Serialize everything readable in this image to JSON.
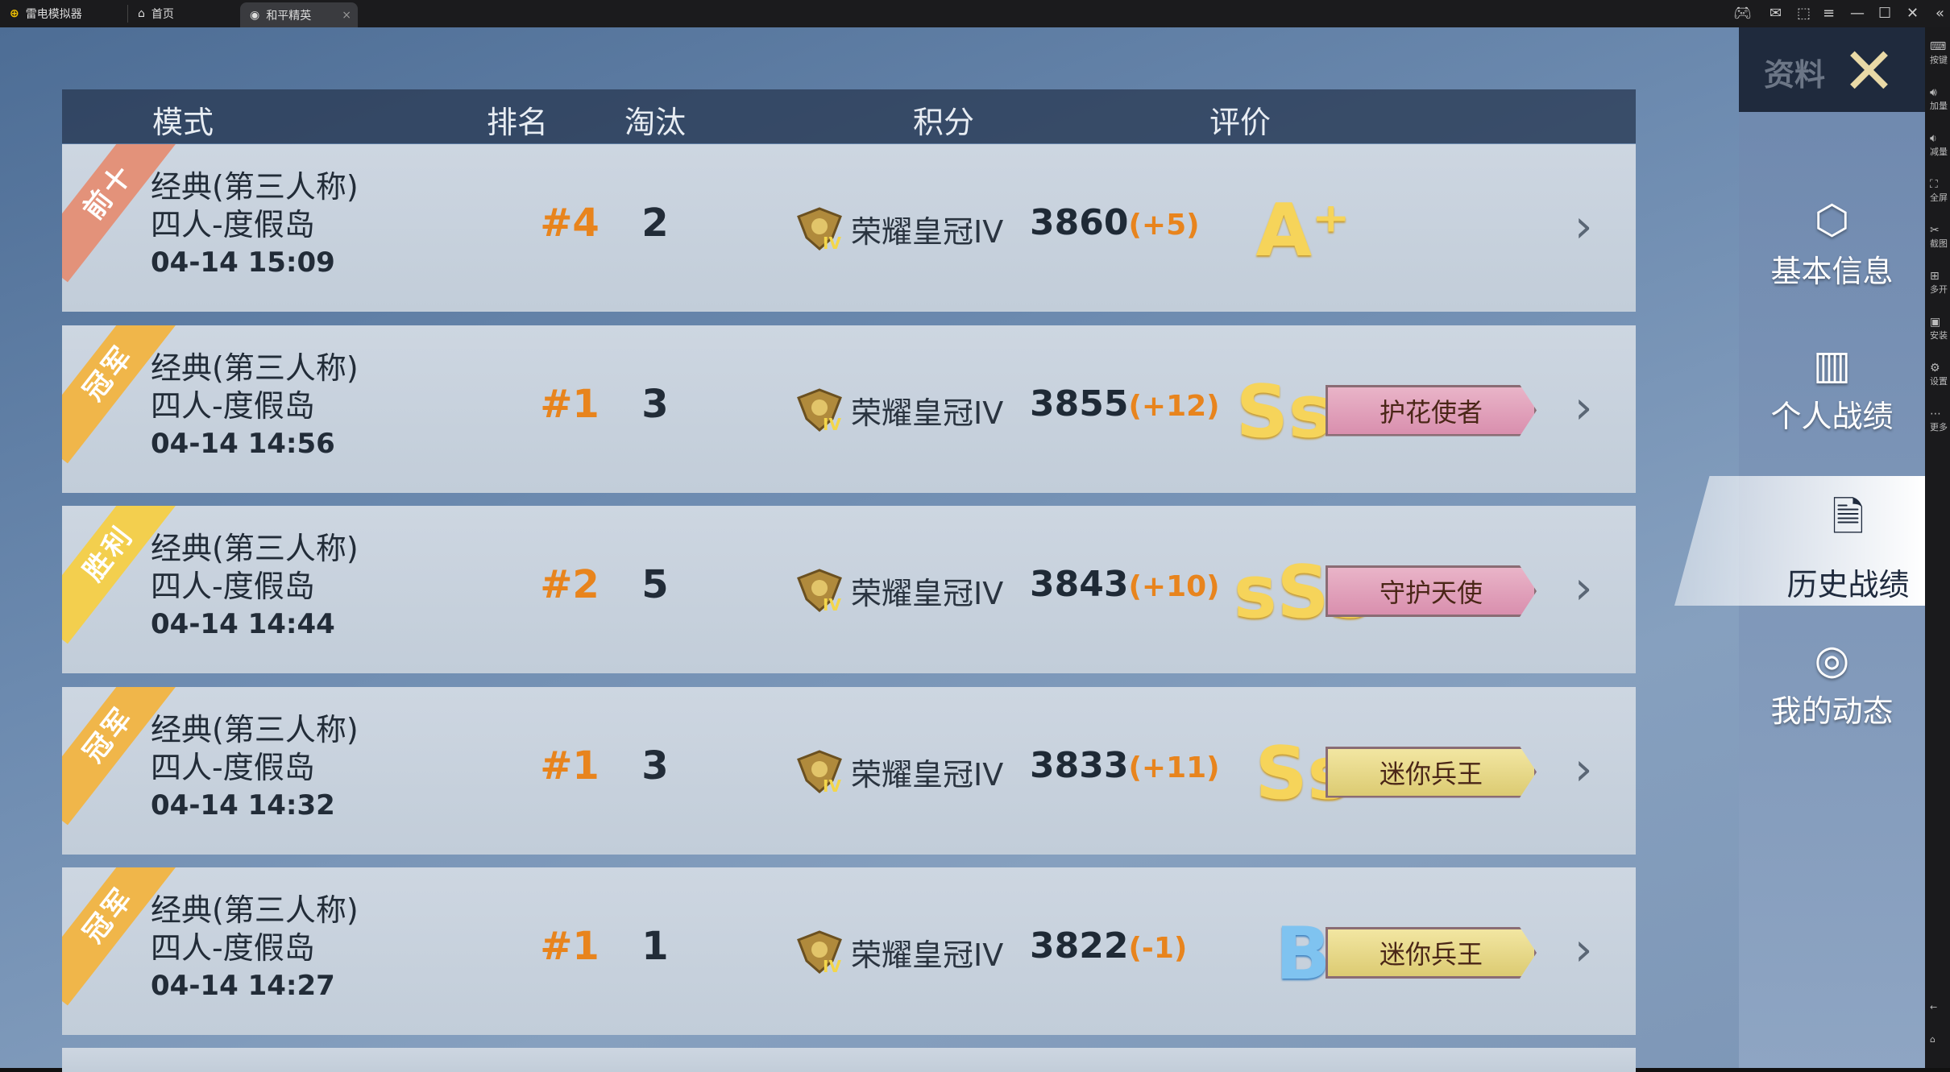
{
  "titlebar": {
    "app": "雷电模拟器",
    "tabs": [
      {
        "label": "首页"
      },
      {
        "label": "和平精英"
      }
    ]
  },
  "tools": [
    {
      "icon": "keyboard-icon",
      "label": "按键"
    },
    {
      "icon": "volume-up-icon",
      "label": "加量"
    },
    {
      "icon": "volume-down-icon",
      "label": "减量"
    },
    {
      "icon": "fullscreen-icon",
      "label": "全屏"
    },
    {
      "icon": "scissors-icon",
      "label": "截图"
    },
    {
      "icon": "multi-instance-icon",
      "label": "多开"
    },
    {
      "icon": "apk-icon",
      "label": "安装"
    },
    {
      "icon": "gear-icon",
      "label": "设置"
    },
    {
      "icon": "more-icon",
      "label": "更多"
    }
  ],
  "header": {
    "mode": "模式",
    "rank": "排名",
    "kills": "淘汰",
    "score": "积分",
    "rating": "评价"
  },
  "rows": [
    {
      "ribbon": "前十",
      "ribbon_color": "#e3927a",
      "mode": "经典(第三人称)",
      "map": "四人-度假岛",
      "time": "04-14 15:09",
      "rank": "#4",
      "kills": "2",
      "tier": "荣耀皇冠IV",
      "score": "3860",
      "delta": "(+5)",
      "grade": "A⁺",
      "title": ""
    },
    {
      "ribbon": "冠军",
      "ribbon_color": "#f0b64a",
      "mode": "经典(第三人称)",
      "map": "四人-度假岛",
      "time": "04-14 14:56",
      "rank": "#1",
      "kills": "3",
      "tier": "荣耀皇冠IV",
      "score": "3855",
      "delta": "(+12)",
      "grade": "Ss⁺",
      "title": "护花使者",
      "title_style": "pink"
    },
    {
      "ribbon": "胜利",
      "ribbon_color": "#f3cf4e",
      "mode": "经典(第三人称)",
      "map": "四人-度假岛",
      "time": "04-14 14:44",
      "rank": "#2",
      "kills": "5",
      "tier": "荣耀皇冠IV",
      "score": "3843",
      "delta": "(+10)",
      "grade": "sSs",
      "title": "守护天使",
      "title_style": "pink"
    },
    {
      "ribbon": "冠军",
      "ribbon_color": "#f0b64a",
      "mode": "经典(第三人称)",
      "map": "四人-度假岛",
      "time": "04-14 14:32",
      "rank": "#1",
      "kills": "3",
      "tier": "荣耀皇冠IV",
      "score": "3833",
      "delta": "(+11)",
      "grade": "Ss",
      "title": "迷你兵王",
      "title_style": "gold"
    },
    {
      "ribbon": "冠军",
      "ribbon_color": "#f0b64a",
      "mode": "经典(第三人称)",
      "map": "四人-度假岛",
      "time": "04-14 14:27",
      "rank": "#1",
      "kills": "1",
      "tier": "荣耀皇冠IV",
      "score": "3822",
      "delta": "(-1)",
      "grade": "B",
      "title": "迷你兵王",
      "title_style": "gold"
    }
  ],
  "side": {
    "title": "资料",
    "items": [
      {
        "label": "基本信息",
        "icon": "profile-icon"
      },
      {
        "label": "个人战绩",
        "icon": "stats-icon"
      },
      {
        "label": "历史战绩",
        "icon": "history-icon",
        "selected": true
      },
      {
        "label": "我的动态",
        "icon": "moments-icon"
      }
    ]
  }
}
